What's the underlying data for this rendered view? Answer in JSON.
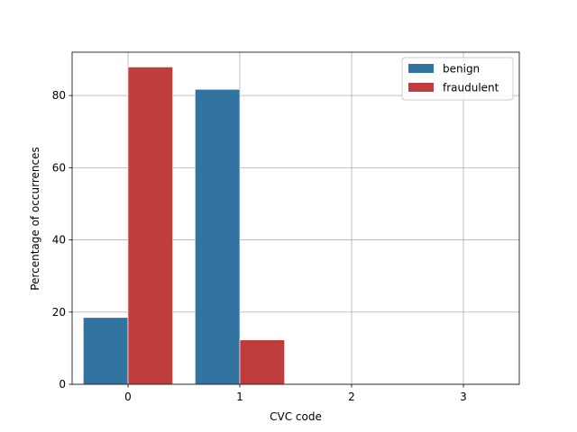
{
  "chart_data": {
    "type": "bar",
    "title": "",
    "xlabel": "CVC code",
    "ylabel": "Percentage of occurrences",
    "categories": [
      "0",
      "1",
      "2",
      "3"
    ],
    "series": [
      {
        "name": "benign",
        "values": [
          18.5,
          81.7,
          0,
          0
        ],
        "color": "#3274a1"
      },
      {
        "name": "fraudulent",
        "values": [
          87.9,
          12.3,
          0,
          0
        ],
        "color": "#c03d3e"
      }
    ],
    "ylim": [
      0,
      92
    ],
    "yticks": [
      0,
      20,
      40,
      60,
      80
    ],
    "grid": true,
    "legend_position": "top-right"
  }
}
